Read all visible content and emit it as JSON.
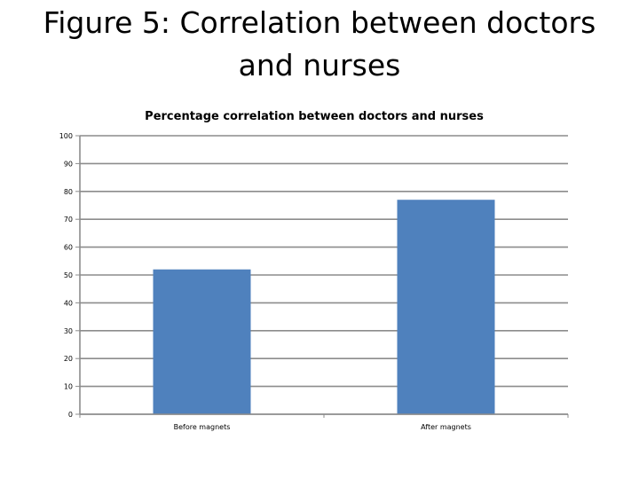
{
  "slide": {
    "title": "Figure 5: Correlation between doctors and nurses"
  },
  "chart_data": {
    "type": "bar",
    "title": "Percentage correlation between doctors and nurses",
    "categories": [
      "Before magnets",
      "After magnets"
    ],
    "values": [
      52,
      77
    ],
    "xlabel": "",
    "ylabel": "",
    "ylim": [
      0,
      100
    ],
    "yticks": [
      0,
      10,
      20,
      30,
      40,
      50,
      60,
      70,
      80,
      90,
      100
    ],
    "grid": true,
    "legend": "none",
    "colors": {
      "bar": "#4F81BD",
      "grid": "#8C8C8C",
      "axis": "#8C8C8C"
    }
  }
}
